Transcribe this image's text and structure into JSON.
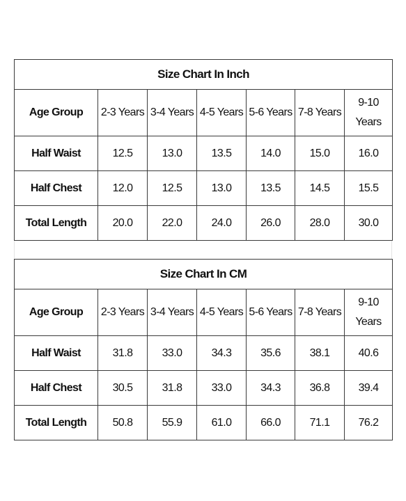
{
  "tables": [
    {
      "title": "Size Chart In Inch",
      "header": [
        "Age Group",
        "2-3 Years",
        "3-4 Years",
        "4-5 Years",
        "5-6 Years",
        "7-8 Years",
        "9-10 Years"
      ],
      "rows": [
        [
          "Half Waist",
          "12.5",
          "13.0",
          "13.5",
          "14.0",
          "15.0",
          "16.0"
        ],
        [
          "Half Chest",
          "12.0",
          "12.5",
          "13.0",
          "13.5",
          "14.5",
          "15.5"
        ],
        [
          "Total Length",
          "20.0",
          "22.0",
          "24.0",
          "26.0",
          "28.0",
          "30.0"
        ]
      ]
    },
    {
      "title": "Size Chart In CM",
      "header": [
        "Age Group",
        "2-3 Years",
        "3-4 Years",
        "4-5 Years",
        "5-6 Years",
        "7-8 Years",
        "9-10 Years"
      ],
      "rows": [
        [
          "Half Waist",
          "31.8",
          "33.0",
          "34.3",
          "35.6",
          "38.1",
          "40.6"
        ],
        [
          "Half Chest",
          "30.5",
          "31.8",
          "33.0",
          "34.3",
          "36.8",
          "39.4"
        ],
        [
          "Total Length",
          "50.8",
          "55.9",
          "61.0",
          "66.0",
          "71.1",
          "76.2"
        ]
      ]
    }
  ]
}
